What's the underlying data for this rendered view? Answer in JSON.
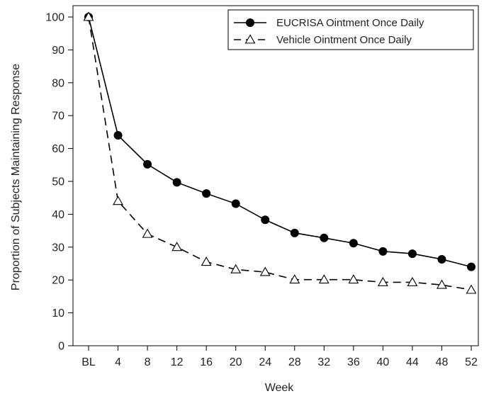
{
  "chart_data": {
    "type": "line",
    "xlabel": "Week",
    "ylabel": "Proportion of Subjects Maintaining Response",
    "categories": [
      "BL",
      "4",
      "8",
      "12",
      "16",
      "20",
      "24",
      "28",
      "32",
      "36",
      "40",
      "44",
      "48",
      "52"
    ],
    "ylim": [
      0,
      100
    ],
    "yticks": [
      0,
      10,
      20,
      30,
      40,
      50,
      60,
      70,
      80,
      90,
      100
    ],
    "grid": false,
    "legend_position": "top-right",
    "series": [
      {
        "name": "EUCRISA Ointment Once Daily",
        "values": [
          100,
          64,
          55.2,
          49.7,
          46.3,
          43.2,
          38.3,
          34.3,
          32.8,
          31.2,
          28.7,
          28.0,
          26.3,
          24.0
        ],
        "line_style": "solid",
        "marker": "filled-circle",
        "color": "#000000"
      },
      {
        "name": "Vehicle Ointment Once Daily",
        "values": [
          100,
          44,
          34,
          30,
          25.5,
          23.2,
          22.4,
          20.1,
          20.1,
          20.1,
          19.3,
          19.3,
          18.5,
          17.0
        ],
        "line_style": "dashed",
        "marker": "open-triangle",
        "color": "#000000"
      }
    ]
  }
}
